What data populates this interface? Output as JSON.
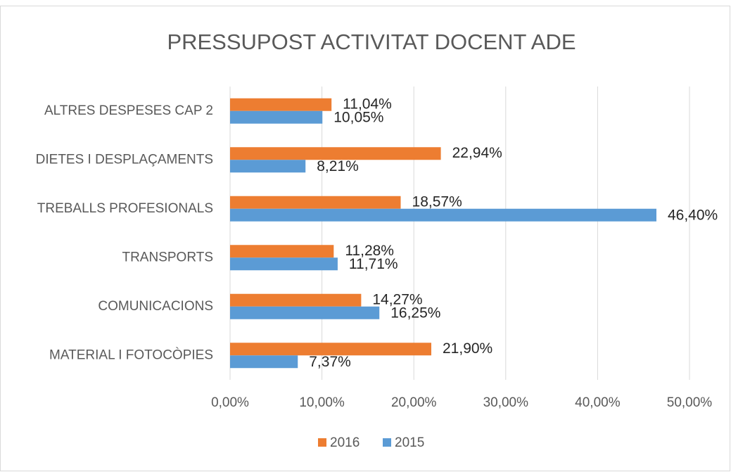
{
  "chart_data": {
    "type": "hbar",
    "title": "PRESSUPOST ACTIVITAT DOCENT ADE",
    "categories": [
      "ALTRES DESPESES CAP 2",
      "DIETES I DESPLAÇAMENTS",
      "TREBALLS PROFESIONALS",
      "TRANSPORTS",
      "COMUNICACIONS",
      "MATERIAL I FOTOCÒPIES"
    ],
    "series": [
      {
        "name": "2016",
        "color": "#ed7d31",
        "values": [
          11.04,
          22.94,
          18.57,
          11.28,
          14.27,
          21.9
        ],
        "value_labels": [
          "11,04%",
          "22,94%",
          "18,57%",
          "11,28%",
          "14,27%",
          "21,90%"
        ]
      },
      {
        "name": "2015",
        "color": "#5b9bd5",
        "values": [
          10.05,
          8.21,
          46.4,
          11.71,
          16.25,
          7.37
        ],
        "value_labels": [
          "10,05%",
          "8,21%",
          "46,40%",
          "11,71%",
          "16,25%",
          "7,37%"
        ]
      }
    ],
    "xlim": [
      0,
      50
    ],
    "xticks": [
      {
        "value": 0,
        "label": "0,00%"
      },
      {
        "value": 10,
        "label": "10,00%"
      },
      {
        "value": 20,
        "label": "20,00%"
      },
      {
        "value": 30,
        "label": "30,00%"
      },
      {
        "value": 40,
        "label": "40,00%"
      },
      {
        "value": 50,
        "label": "50,00%"
      }
    ],
    "grid": true,
    "legend": "bottom"
  }
}
